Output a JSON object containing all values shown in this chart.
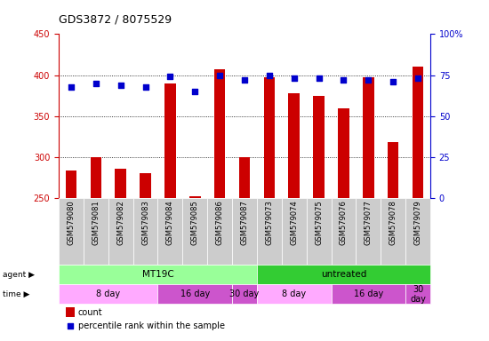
{
  "title": "GDS3872 / 8075529",
  "samples": [
    "GSM579080",
    "GSM579081",
    "GSM579082",
    "GSM579083",
    "GSM579084",
    "GSM579085",
    "GSM579086",
    "GSM579087",
    "GSM579073",
    "GSM579074",
    "GSM579075",
    "GSM579076",
    "GSM579077",
    "GSM579078",
    "GSM579079"
  ],
  "counts": [
    284,
    300,
    286,
    281,
    390,
    253,
    407,
    300,
    397,
    378,
    375,
    360,
    397,
    318,
    410
  ],
  "percentiles": [
    68,
    70,
    69,
    68,
    74,
    65,
    75,
    72,
    75,
    73,
    73,
    72,
    72,
    71,
    73
  ],
  "ymin": 250,
  "ymax": 450,
  "yleft_ticks": [
    250,
    300,
    350,
    400,
    450
  ],
  "yright_ticks": [
    0,
    25,
    50,
    75,
    100
  ],
  "yright_labels": [
    "0",
    "25",
    "50",
    "75",
    "100%"
  ],
  "bar_color": "#cc0000",
  "dot_color": "#0000cc",
  "bar_bottom": 250,
  "agent_row": [
    {
      "label": "MT19C",
      "start": 0,
      "end": 8,
      "color": "#99ff99"
    },
    {
      "label": "untreated",
      "start": 8,
      "end": 15,
      "color": "#33cc33"
    }
  ],
  "time_row": [
    {
      "label": "8 day",
      "start": 0,
      "end": 4,
      "color": "#ffaaff"
    },
    {
      "label": "16 day",
      "start": 4,
      "end": 7,
      "color": "#cc55cc"
    },
    {
      "label": "30 day",
      "start": 7,
      "end": 8,
      "color": "#cc55cc"
    },
    {
      "label": "8 day",
      "start": 8,
      "end": 11,
      "color": "#ffaaff"
    },
    {
      "label": "16 day",
      "start": 11,
      "end": 14,
      "color": "#cc55cc"
    },
    {
      "label": "30\nday",
      "start": 14,
      "end": 15,
      "color": "#cc55cc"
    }
  ],
  "tick_label_color": "#cc0000",
  "right_tick_color": "#0000cc",
  "grid_color": "#000000",
  "bg_color": "#ffffff",
  "xticklabel_bg": "#cccccc"
}
